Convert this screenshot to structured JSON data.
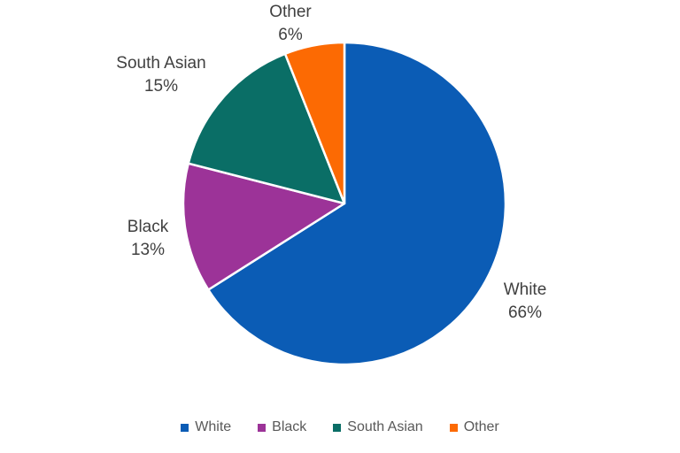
{
  "chart_data": {
    "type": "pie",
    "title": "",
    "slices": [
      {
        "label": "White",
        "value": 66,
        "pct_label": "66%",
        "color": "#0B5CB5"
      },
      {
        "label": "Black",
        "value": 13,
        "pct_label": "13%",
        "color": "#9C3398"
      },
      {
        "label": "South Asian",
        "value": 15,
        "pct_label": "15%",
        "color": "#0A6E66"
      },
      {
        "label": "Other",
        "value": 6,
        "pct_label": "6%",
        "color": "#FC6A03"
      }
    ],
    "start_angle_deg": 0,
    "direction": "clockwise",
    "slice_border_color": "#FFFFFF",
    "data_labels": "category name and percentage, outside slices",
    "legend_position": "bottom",
    "label_text_color": "#404040",
    "legend_text_color": "#595959"
  }
}
